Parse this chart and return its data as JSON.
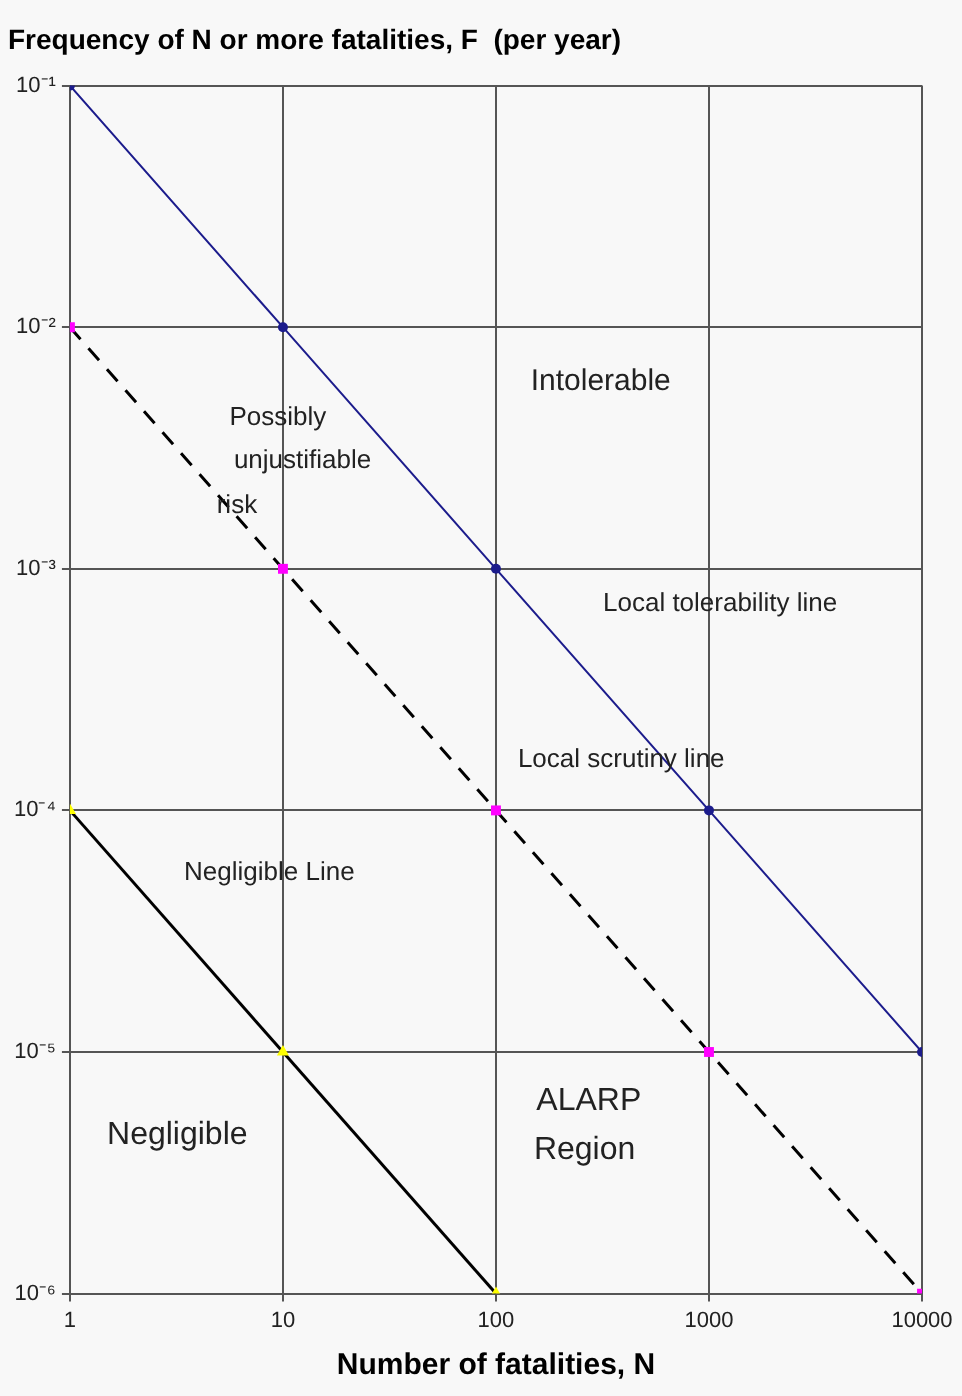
{
  "chart_data": {
    "type": "line",
    "title": "Frequency of N or more fatalities, F  (per year)",
    "xlabel": "Number of fatalities, N",
    "log": "xy",
    "grid": true,
    "legend": false,
    "xlim": [
      1,
      10000
    ],
    "xticks": [
      1,
      10,
      100,
      1000,
      10000
    ],
    "ylim": [
      1e-06,
      0.1
    ],
    "yticks": [
      {
        "value": 0.1,
        "label": "10⁻¹"
      },
      {
        "value": 0.01,
        "label": "10⁻²"
      },
      {
        "value": 0.001,
        "label": "10⁻³"
      },
      {
        "value": 0.0001,
        "label": "10⁻⁴"
      },
      {
        "value": 1e-05,
        "label": "10⁻⁵"
      },
      {
        "value": 1e-06,
        "label": "10⁻⁶"
      }
    ],
    "series": [
      {
        "color": "#1c1c8c",
        "x": [
          1,
          10,
          100,
          1000,
          10000
        ],
        "values": [
          0.1,
          0.01,
          0.001,
          0.0001,
          1e-05
        ],
        "marker": "circle",
        "line_style": "solid",
        "colors": [
          "#1c1c8c",
          "#1c1c8c",
          "#1c1c8c",
          "#1c1c8c",
          "#1c1c8c"
        ]
      },
      {
        "color": "#000000",
        "x": [
          1,
          10,
          100,
          1000,
          10000
        ],
        "values": [
          0.01,
          0.001,
          0.0001,
          1e-05,
          1e-06
        ],
        "marker": "square",
        "line_style": "dashed",
        "colors": [
          "#ff00ff",
          "#ff00ff",
          "#ff00ff",
          "#ff00ff",
          "#ff00ff"
        ]
      },
      {
        "color": "#000000",
        "x": [
          1,
          10,
          100
        ],
        "values": [
          0.0001,
          1e-05,
          1e-06
        ],
        "marker": "triangle",
        "line_style": "solid",
        "colors": [
          "#ffff00",
          "#ffff00",
          "#ffff00"
        ]
      }
    ],
    "annotations": [
      "Intolerable",
      "Possibly",
      "unjustifiable",
      "risk",
      "Local tolerability line",
      "Local scrutiny line",
      "Negligible Line",
      "Negligible",
      "ALARP",
      "Region"
    ]
  }
}
